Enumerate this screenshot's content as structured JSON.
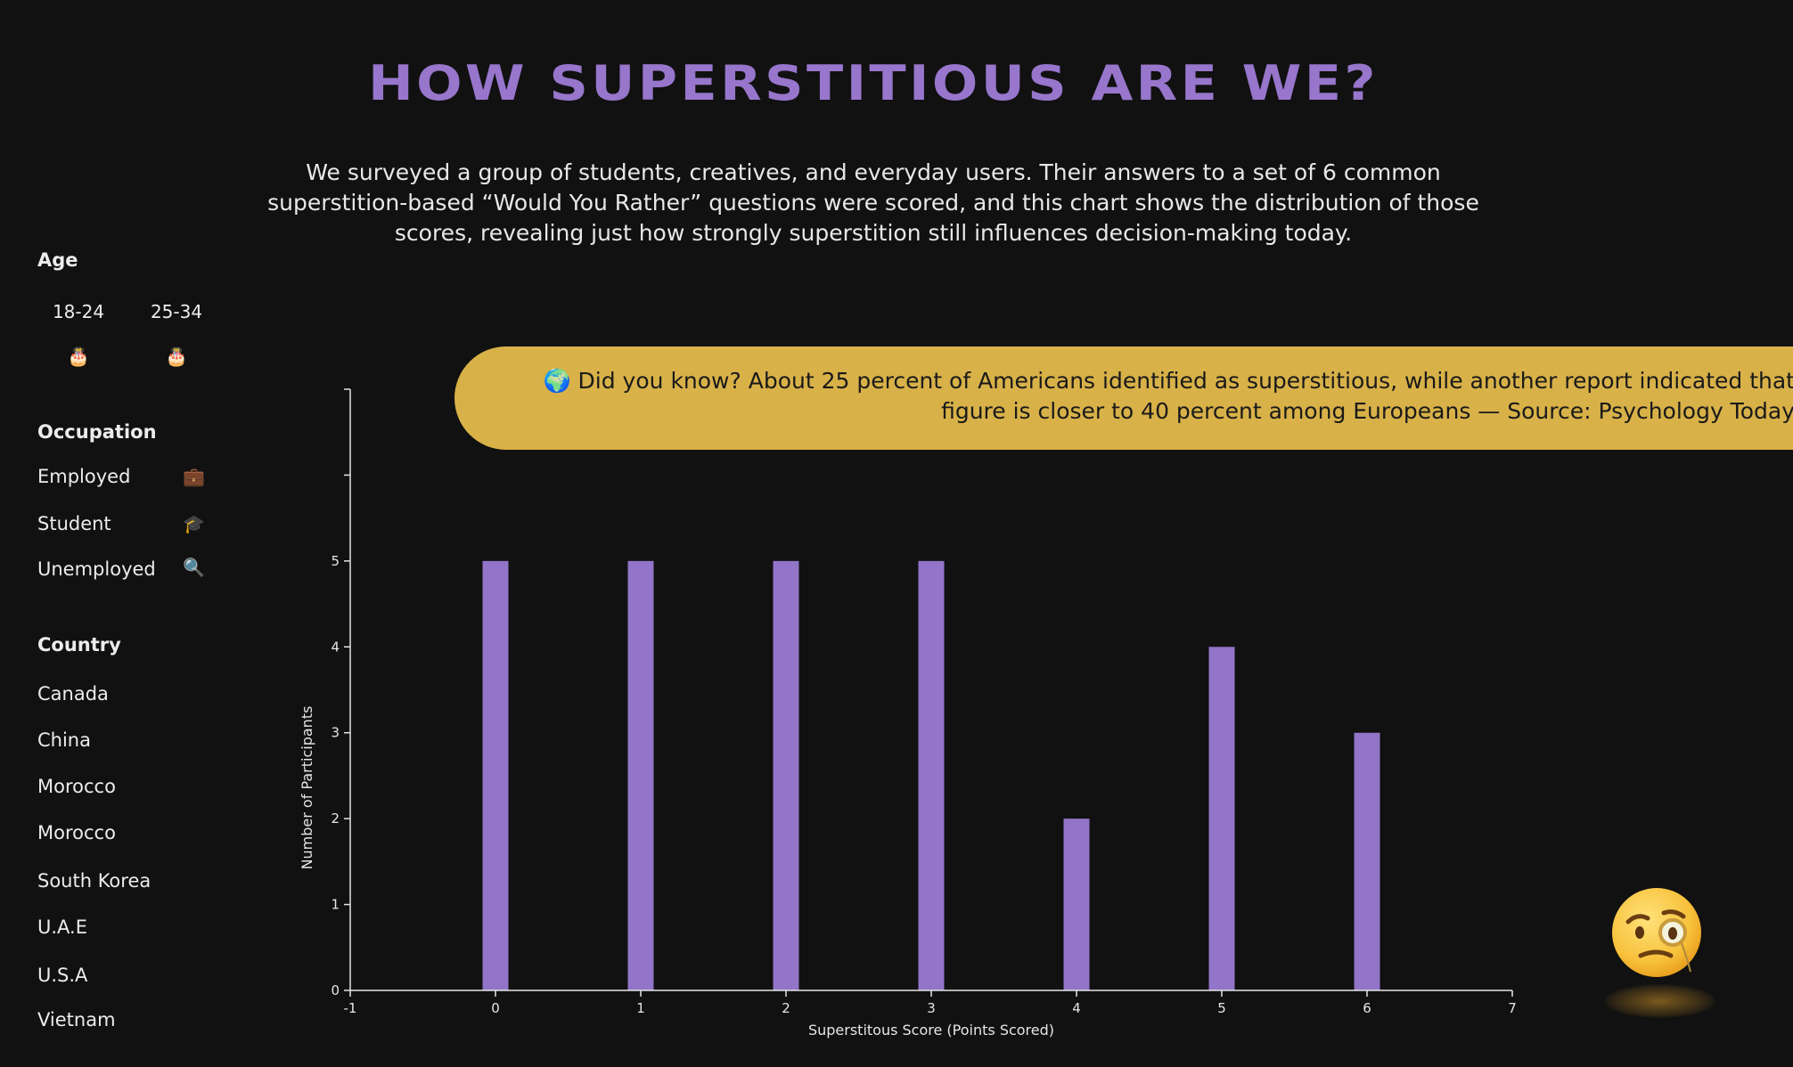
{
  "title": "HOW SUPERSTITIOUS ARE WE?",
  "subtitle": "We surveyed a group of students, creatives, and everyday users. Their answers to a set of 6 common superstition-based “Would You Rather” questions were scored, and this chart shows the distribution of those scores, revealing just how strongly superstition still influences decision-making today.",
  "sidebar": {
    "age": {
      "heading": "Age",
      "items": [
        {
          "label": "18-24",
          "icon": "🎂"
        },
        {
          "label": "25-34",
          "icon": "🎂"
        }
      ]
    },
    "occupation": {
      "heading": "Occupation",
      "items": [
        {
          "label": "Employed",
          "icon": "💼"
        },
        {
          "label": "Student",
          "icon": "🎓"
        },
        {
          "label": "Unemployed",
          "icon": "🔍"
        }
      ]
    },
    "country": {
      "heading": "Country",
      "items": [
        "Canada",
        "China",
        "Morocco",
        "Morocco",
        "South Korea",
        "U.A.E",
        "U.S.A",
        "Vietnam"
      ]
    }
  },
  "fact": {
    "icon": "🌍",
    "text": "Did you know? About 25 percent of Americans identified as superstitious, while another report indicated that figure is closer to 40 percent among Europeans — Source: Psychology Today"
  },
  "chart_data": {
    "type": "bar",
    "x": [
      0,
      1,
      2,
      3,
      4,
      5,
      6
    ],
    "values": [
      5,
      5,
      5,
      5,
      2,
      4,
      3
    ],
    "xlabel": "Superstitous Score (Points Scored)",
    "ylabel": "Number of Participants",
    "xlim": [
      -1,
      7
    ],
    "ylim": [
      0,
      7
    ],
    "xticks": [
      -1,
      0,
      1,
      2,
      3,
      4,
      5,
      6,
      7
    ],
    "yticks_labeled": [
      0,
      1,
      2,
      3,
      4,
      5
    ],
    "grid": false,
    "bar_color": "#9274c8",
    "axis_color": "#e6e6e6"
  },
  "mascot_icon": "face-with-monocle"
}
